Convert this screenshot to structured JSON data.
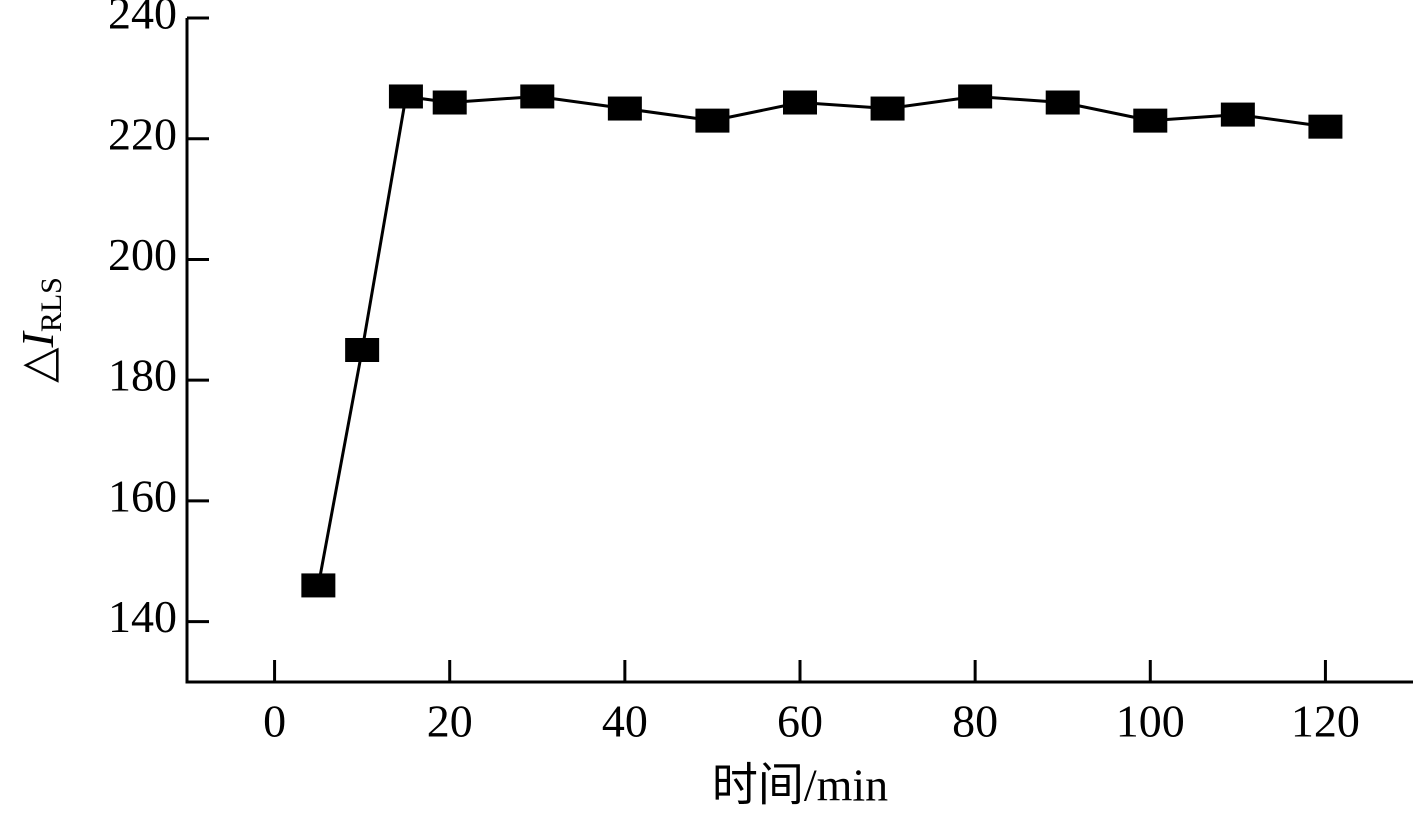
{
  "chart_data": {
    "type": "line",
    "x_label": "时间/min",
    "y_label": "△I",
    "y_label_subscript": "RLS",
    "x": [
      5,
      10,
      15,
      20,
      30,
      40,
      50,
      60,
      70,
      80,
      90,
      100,
      110,
      120
    ],
    "values": [
      146,
      185,
      227,
      226,
      227,
      225,
      223,
      226,
      225,
      227,
      226,
      223,
      224,
      222
    ],
    "color": "#000000",
    "marker": "square",
    "xlim": [
      -10,
      130
    ],
    "xticks": [
      0,
      20,
      40,
      60,
      80,
      100,
      120
    ],
    "ylim": [
      130,
      240
    ],
    "yticks": [
      140,
      160,
      180,
      200,
      220,
      240
    ],
    "grid": false
  }
}
